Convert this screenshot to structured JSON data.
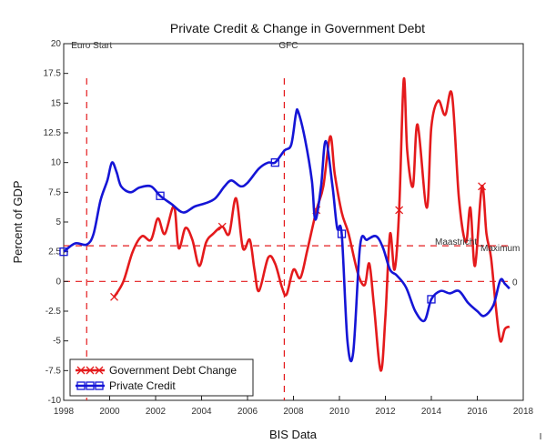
{
  "chart_data": {
    "type": "line",
    "title": "Private Credit & Change in Government Debt",
    "xlabel": "BIS Data",
    "ylabel": "Percent of GDP",
    "xlim": [
      1998,
      2018
    ],
    "ylim": [
      -10,
      20
    ],
    "x_ticks": [
      1998,
      2000,
      2002,
      2004,
      2006,
      2008,
      2010,
      2012,
      2014,
      2016,
      2018
    ],
    "y_ticks": [
      -10,
      -7.5,
      -5,
      -2.5,
      0,
      2.5,
      5,
      7.5,
      10,
      12.5,
      15,
      17.5,
      20
    ],
    "grid": false,
    "legend_position": "bottom-left",
    "series": [
      {
        "name": "Government Debt Change",
        "color": "#e41a1c",
        "marker": "x",
        "x": [
          2000.2,
          2000.6,
          2001.0,
          2001.4,
          2001.8,
          2002.1,
          2002.4,
          2002.8,
          2003.0,
          2003.3,
          2003.6,
          2003.9,
          2004.2,
          2004.5,
          2004.9,
          2005.2,
          2005.5,
          2005.8,
          2006.1,
          2006.3,
          2006.5,
          2006.9,
          2007.2,
          2007.5,
          2007.7,
          2008.0,
          2008.3,
          2008.6,
          2009.0,
          2009.3,
          2009.6,
          2009.8,
          2010.1,
          2010.4,
          2010.8,
          2011.1,
          2011.3,
          2011.5,
          2011.8,
          2012.0,
          2012.2,
          2012.4,
          2012.6,
          2012.8,
          2012.95,
          2013.2,
          2013.4,
          2013.8,
          2014.0,
          2014.3,
          2014.6,
          2014.9,
          2015.2,
          2015.5,
          2015.7,
          2015.9,
          2016.2,
          2016.4,
          2016.6,
          2016.8,
          2017.0,
          2017.2,
          2017.4
        ],
        "y": [
          -1.3,
          0.0,
          2.5,
          3.8,
          3.5,
          5.3,
          4.0,
          6.3,
          2.8,
          4.5,
          3.5,
          1.3,
          3.3,
          4.0,
          4.6,
          4.0,
          7.0,
          2.8,
          3.5,
          1.0,
          -0.8,
          2.0,
          1.5,
          -0.5,
          -1.1,
          1.0,
          0.3,
          2.6,
          6.0,
          8.0,
          12.2,
          9.0,
          5.8,
          4.0,
          0.7,
          -0.3,
          1.5,
          -2.0,
          -7.5,
          -3.0,
          4.0,
          1.0,
          6.0,
          17.0,
          11.0,
          8.0,
          13.2,
          6.2,
          13.0,
          15.2,
          14.0,
          15.7,
          7.0,
          3.3,
          6.2,
          1.3,
          8.0,
          4.0,
          2.0,
          -2.0,
          -5.0,
          -4.0,
          -3.8
        ]
      },
      {
        "name": "Private Credit",
        "color": "#1515d6",
        "marker": "square",
        "x": [
          1998.0,
          1998.5,
          1999.0,
          1999.3,
          1999.6,
          1999.9,
          2000.1,
          2000.3,
          2000.5,
          2000.9,
          2001.3,
          2001.8,
          2002.2,
          2002.7,
          2003.2,
          2003.7,
          2004.2,
          2004.6,
          2005.0,
          2005.3,
          2005.7,
          2006.0,
          2006.5,
          2006.9,
          2007.2,
          2007.6,
          2007.9,
          2008.1,
          2008.2,
          2008.5,
          2008.8,
          2008.95,
          2009.2,
          2009.4,
          2009.7,
          2009.9,
          2010.1,
          2010.35,
          2010.6,
          2010.9,
          2011.2,
          2011.6,
          2011.9,
          2012.2,
          2012.5,
          2012.9,
          2013.3,
          2013.7,
          2014.0,
          2014.4,
          2014.8,
          2015.2,
          2015.6,
          2016.0,
          2016.3,
          2016.7,
          2017.0,
          2017.2,
          2017.4
        ],
        "y": [
          2.5,
          3.2,
          3.1,
          4.0,
          6.8,
          8.5,
          10.0,
          9.2,
          8.0,
          7.5,
          7.9,
          8.0,
          7.2,
          6.5,
          5.8,
          6.3,
          6.6,
          7.0,
          8.0,
          8.5,
          8.0,
          8.3,
          9.5,
          10.0,
          10.0,
          11.0,
          11.5,
          14.0,
          14.3,
          12.0,
          8.5,
          5.2,
          8.0,
          11.8,
          8.0,
          4.5,
          4.0,
          -5.0,
          -6.0,
          3.0,
          3.5,
          3.8,
          2.8,
          1.0,
          0.5,
          -0.5,
          -2.5,
          -3.3,
          -1.5,
          -0.8,
          -1.0,
          -0.8,
          -1.8,
          -2.5,
          -2.9,
          -2.0,
          0.1,
          -0.2,
          -0.6
        ]
      }
    ],
    "annotations": {
      "euro_start": {
        "text": "Euro Start",
        "x": 1999
      },
      "gfc": {
        "text": "GFC",
        "x": 2007.6
      },
      "maastricht": {
        "text": "Maastricht",
        "y": 3
      },
      "maximum": {
        "text": "Maximum"
      },
      "zero": {
        "text": "0",
        "y": 0
      }
    },
    "bottom_glyph": "I"
  }
}
